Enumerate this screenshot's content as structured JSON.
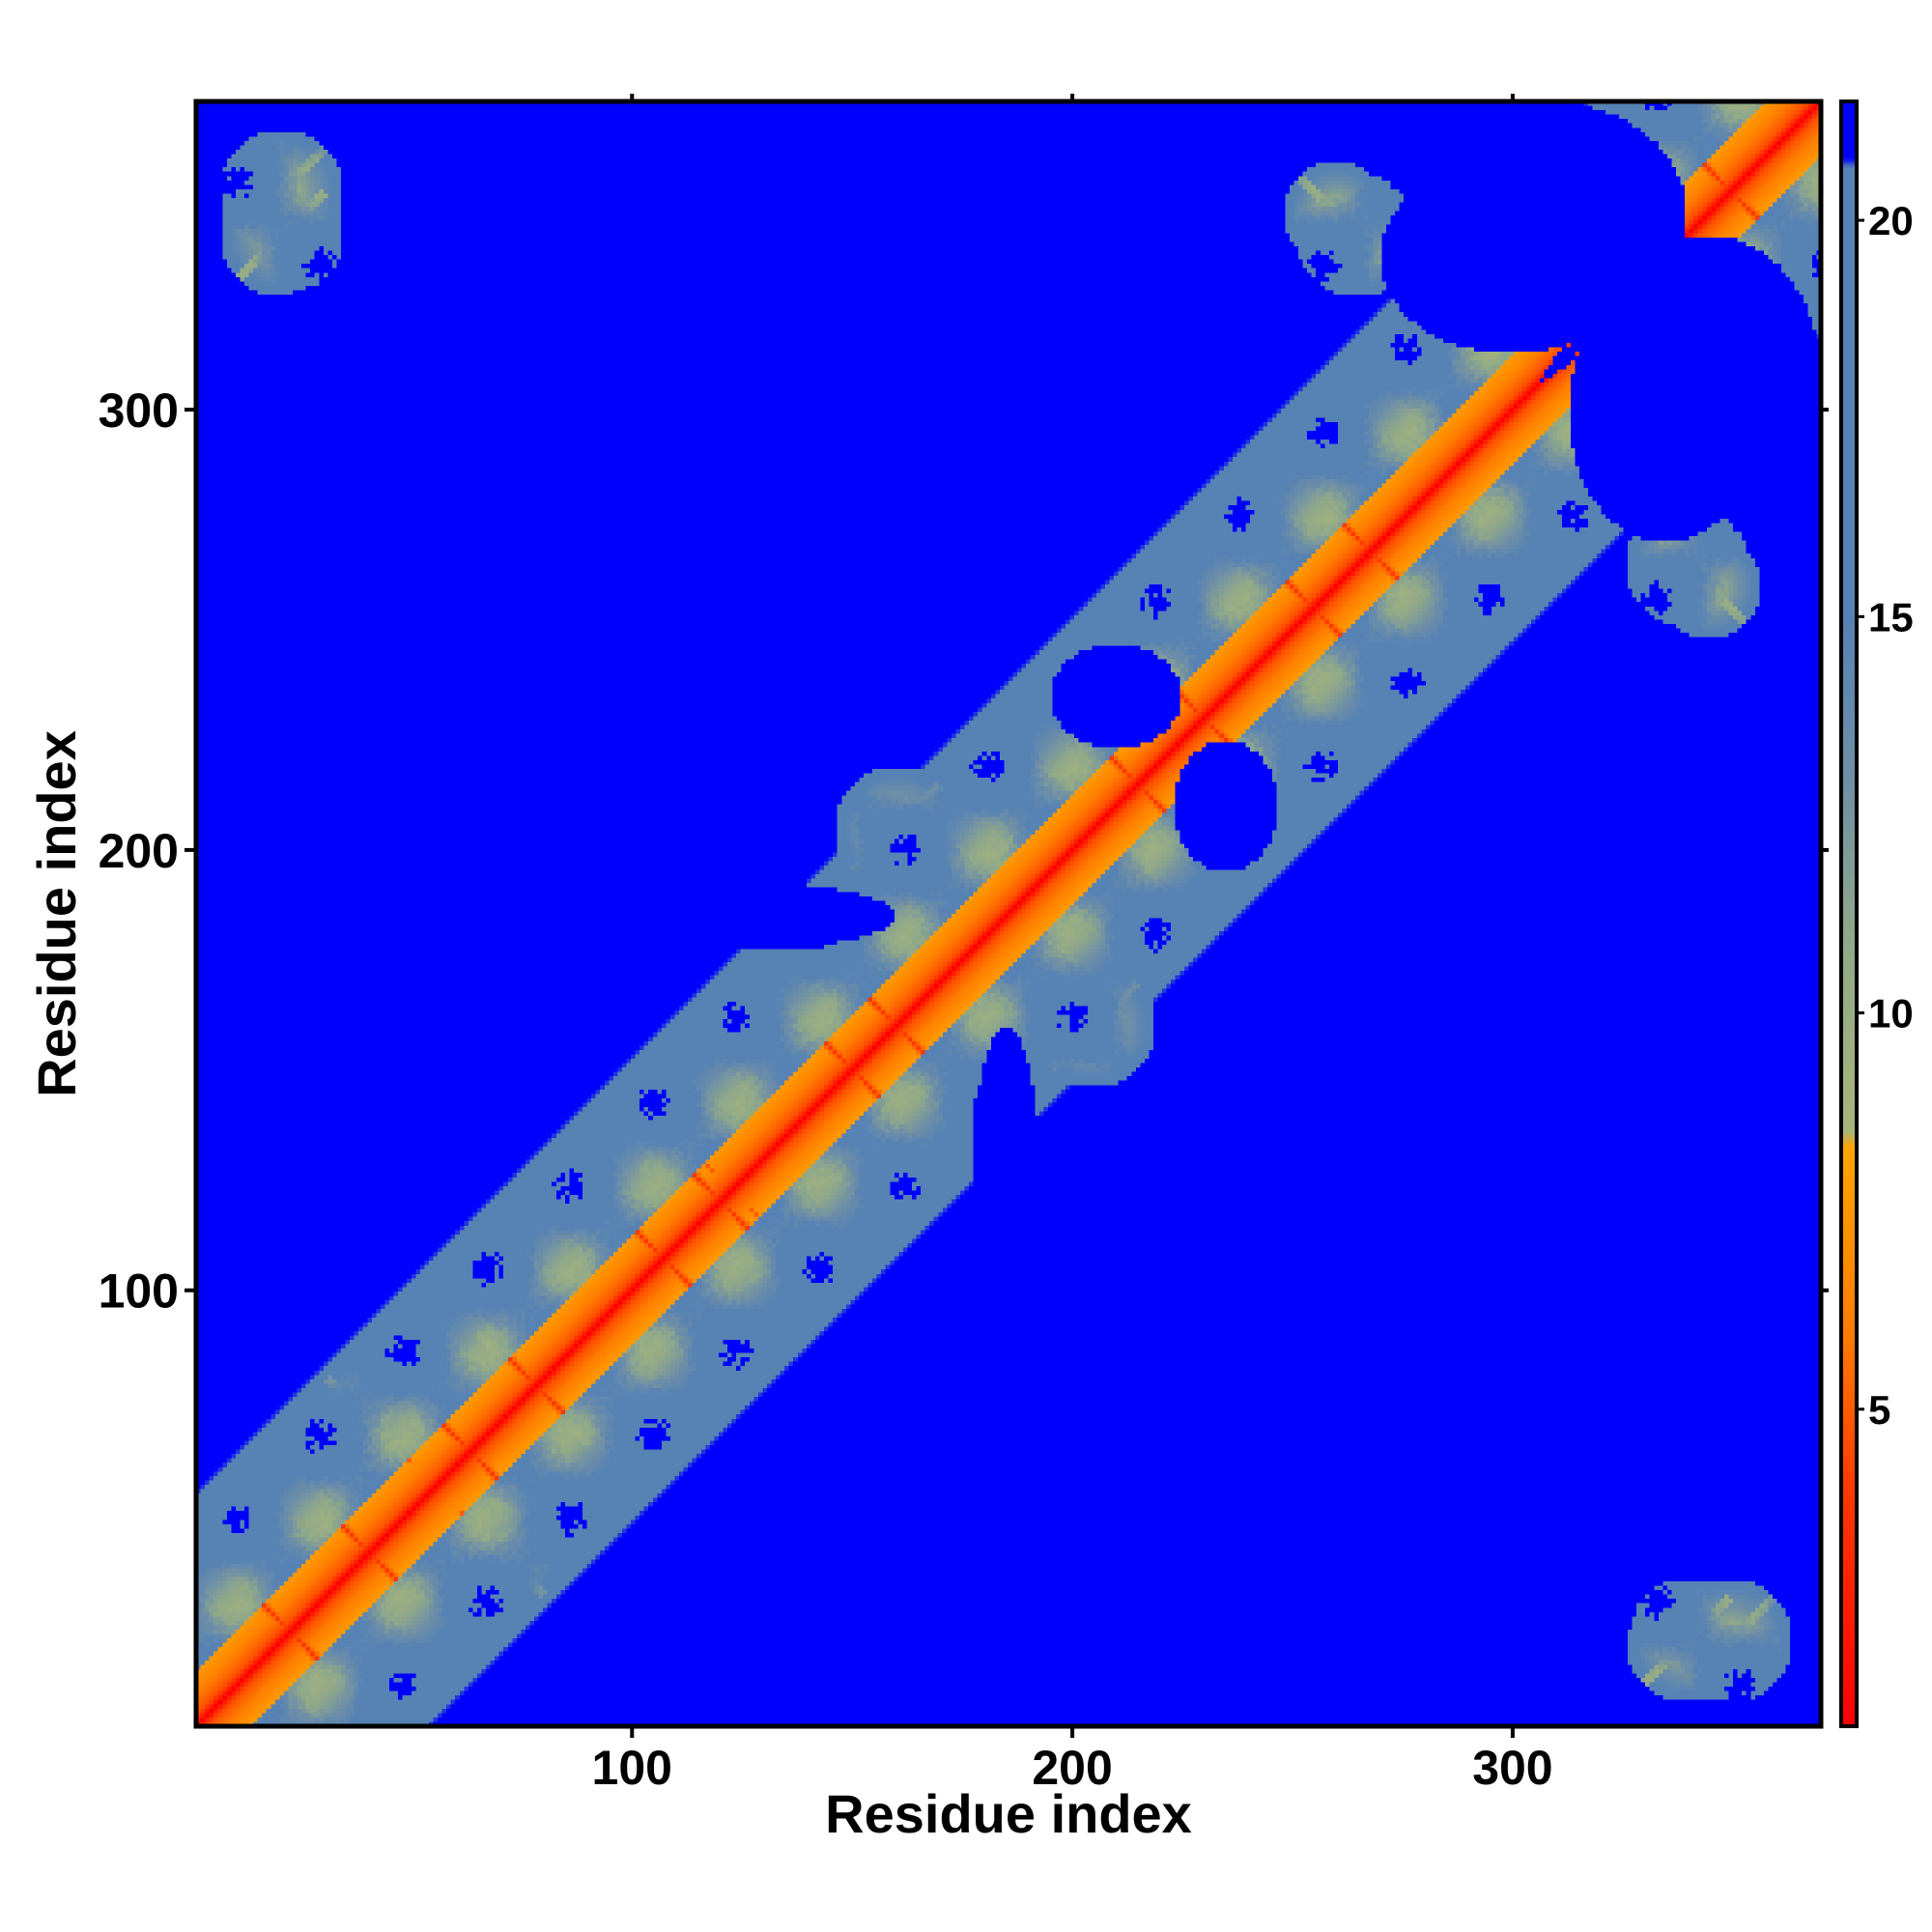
{
  "chart_data": {
    "type": "heatmap",
    "title": "",
    "xlabel": "Residue index",
    "ylabel": "Residue index",
    "n_residues": 370,
    "xlim": [
      1,
      370
    ],
    "ylim": [
      1,
      370
    ],
    "x_ticks": [
      100,
      200,
      300
    ],
    "y_ticks": [
      100,
      200,
      300
    ],
    "symmetric": true,
    "colorbar": {
      "range": [
        1,
        21.5
      ],
      "ticks": [
        5,
        10,
        15,
        20
      ],
      "position": "right",
      "stops": [
        {
          "value": 1,
          "color": "#ff0000"
        },
        {
          "value": 4,
          "color": "#ff3a00"
        },
        {
          "value": 6,
          "color": "#ff7d00"
        },
        {
          "value": 8.3,
          "color": "#ffa500"
        },
        {
          "value": 8.5,
          "color": "#a8b57a"
        },
        {
          "value": 11,
          "color": "#8fa88a"
        },
        {
          "value": 13,
          "color": "#6f8fa6"
        },
        {
          "value": 15,
          "color": "#5682b4"
        },
        {
          "value": 20.7,
          "color": "#5682b4"
        },
        {
          "value": 20.8,
          "color": "#0000ff"
        },
        {
          "value": 21.5,
          "color": "#0000ff"
        }
      ]
    },
    "helices": [
      {
        "center": 22,
        "length": 12
      },
      {
        "center": 40,
        "length": 12
      },
      {
        "center": 63,
        "length": 14
      },
      {
        "center": 78,
        "length": 14
      },
      {
        "center": 107,
        "length": 12
      },
      {
        "center": 120,
        "length": 14
      },
      {
        "center": 150,
        "length": 12
      },
      {
        "center": 160,
        "length": 10
      },
      {
        "center": 215,
        "length": 14
      },
      {
        "center": 230,
        "length": 14
      },
      {
        "center": 255,
        "length": 12
      },
      {
        "center": 268,
        "length": 10
      },
      {
        "center": 335,
        "length": 16
      },
      {
        "center": 350,
        "length": 14
      }
    ],
    "contact_regions": [
      {
        "x": 20,
        "y": 350,
        "radius": 14
      },
      {
        "x": 260,
        "y": 345,
        "radius": 12
      },
      {
        "x": 340,
        "y": 265,
        "radius": 14
      },
      {
        "x": 340,
        "y": 20,
        "radius": 14
      },
      {
        "x": 205,
        "y": 160,
        "radius": 14
      },
      {
        "x": 160,
        "y": 205,
        "radius": 14
      },
      {
        "x": 70,
        "y": 40,
        "radius": 14
      },
      {
        "x": 135,
        "y": 110,
        "radius": 12
      }
    ],
    "dark_regions": [
      {
        "x": 50,
        "y": 310,
        "rx": 35,
        "ry": 20
      },
      {
        "x": 120,
        "y": 305,
        "rx": 20,
        "ry": 30
      },
      {
        "x": 200,
        "y": 300,
        "rx": 25,
        "ry": 25
      },
      {
        "x": 310,
        "y": 345,
        "rx": 30,
        "ry": 25
      },
      {
        "x": 335,
        "y": 300,
        "rx": 30,
        "ry": 22
      },
      {
        "x": 305,
        "y": 190,
        "rx": 28,
        "ry": 20
      },
      {
        "x": 300,
        "y": 90,
        "rx": 45,
        "ry": 22
      },
      {
        "x": 300,
        "y": 40,
        "rx": 40,
        "ry": 30
      },
      {
        "x": 260,
        "y": 150,
        "rx": 25,
        "ry": 15
      },
      {
        "x": 210,
        "y": 120,
        "rx": 18,
        "ry": 18
      },
      {
        "x": 120,
        "y": 185,
        "rx": 40,
        "ry": 8
      },
      {
        "x": 210,
        "y": 235,
        "rx": 15,
        "ry": 12
      }
    ]
  }
}
